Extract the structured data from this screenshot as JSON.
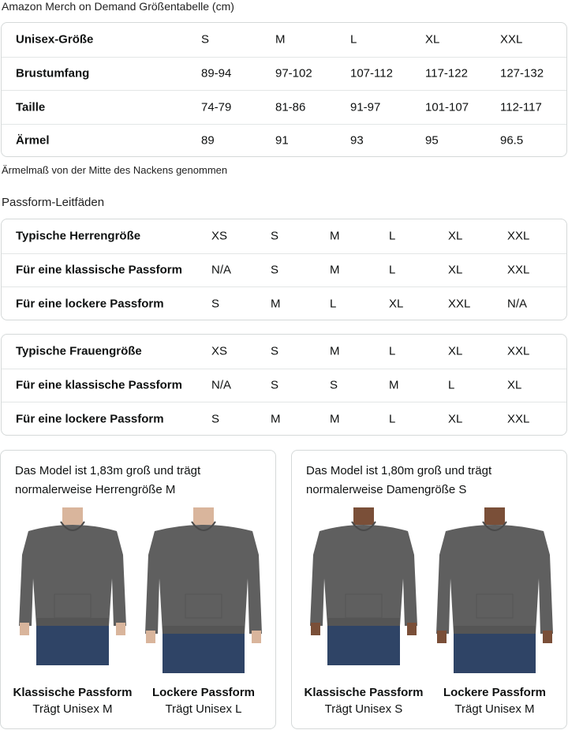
{
  "title": "Amazon Merch on Demand Größentabelle (cm)",
  "size_table": {
    "rows": [
      [
        "Unisex-Größe",
        "S",
        "M",
        "L",
        "XL",
        "XXL"
      ],
      [
        "Brustumfang",
        "89-94",
        "97-102",
        "107-112",
        "117-122",
        "127-132"
      ],
      [
        "Taille",
        "74-79",
        "81-86",
        "91-97",
        "101-107",
        "112-117"
      ],
      [
        "Ärmel",
        "89",
        "91",
        "93",
        "95",
        "96.5"
      ]
    ]
  },
  "note": "Ärmelmaß von der Mitte des Nackens genommen",
  "fit_title": "Passform-Leitfäden",
  "men_table": {
    "rows": [
      [
        "Typische Herrengröße",
        "XS",
        "S",
        "M",
        "L",
        "XL",
        "XXL"
      ],
      [
        "Für eine klassische Passform",
        "N/A",
        "S",
        "M",
        "L",
        "XL",
        "XXL"
      ],
      [
        "Für eine lockere Passform",
        "S",
        "M",
        "L",
        "XL",
        "XXL",
        "N/A"
      ]
    ]
  },
  "women_table": {
    "rows": [
      [
        "Typische Frauengröße",
        "XS",
        "S",
        "M",
        "L",
        "XL",
        "XXL"
      ],
      [
        "Für eine klassische Passform",
        "N/A",
        "S",
        "S",
        "M",
        "L",
        "XL"
      ],
      [
        "Für eine lockere Passform",
        "S",
        "M",
        "M",
        "L",
        "XL",
        "XXL"
      ]
    ]
  },
  "cards": [
    {
      "desc_1": "Das Model ist 1,83m groß und trägt",
      "desc_2": "normalerweise Herrengröße M",
      "figures": [
        {
          "title": "Klassische Passform",
          "sub": "Trägt Unisex M"
        },
        {
          "title": "Lockere Passform",
          "sub": "Trägt Unisex L"
        }
      ]
    },
    {
      "desc_1": "Das Model ist 1,80m groß und trägt",
      "desc_2": "normalerweise Damengröße S",
      "figures": [
        {
          "title": "Klassische Passform",
          "sub": "Trägt Unisex S"
        },
        {
          "title": "Lockere Passform",
          "sub": "Trägt Unisex M"
        }
      ]
    }
  ],
  "colors": {
    "hoodie": "#5f5f5f",
    "jeans": "#2f4466",
    "border": "#d5d9d9"
  }
}
